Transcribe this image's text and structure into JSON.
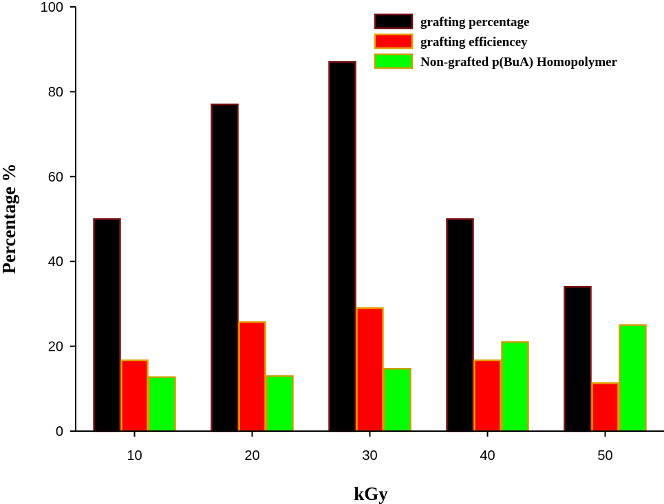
{
  "chart_data": {
    "type": "bar",
    "title": "",
    "xlabel": "kGy",
    "ylabel": "Percentage %",
    "categories": [
      "10",
      "20",
      "30",
      "40",
      "50"
    ],
    "ylim": [
      0,
      100
    ],
    "yticks": [
      "0",
      "20",
      "40",
      "60",
      "80",
      "100"
    ],
    "legend_position": "top-right",
    "series": [
      {
        "name": "grafting percentage",
        "values": [
          50,
          77,
          87,
          50,
          34
        ],
        "fill": "#000000",
        "stroke": "#7a1010"
      },
      {
        "name": "grafting efficiencey",
        "values": [
          16.7,
          25.7,
          29,
          16.7,
          11.3
        ],
        "fill": "#ff0000",
        "stroke": "#e3a000"
      },
      {
        "name": "Non-grafted p(BuA) Homopolymer",
        "values": [
          12.7,
          13,
          14.7,
          21,
          25
        ],
        "fill": "#00ff00",
        "stroke": "#c8a000"
      }
    ]
  }
}
